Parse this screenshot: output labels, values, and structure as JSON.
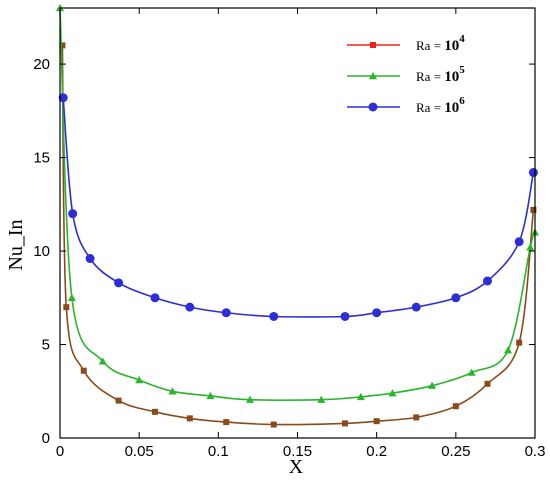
{
  "chart_data": {
    "type": "line",
    "title": "",
    "xlabel": "X",
    "ylabel": "Nu_In",
    "xlim": [
      0,
      0.3
    ],
    "ylim": [
      0,
      23
    ],
    "xticks": [
      0,
      0.05,
      0.1,
      0.15,
      0.2,
      0.25,
      0.3
    ],
    "xtick_labels": [
      "0",
      "0.05",
      "0.1",
      "0.15",
      "0.2",
      "0.25",
      "0.3"
    ],
    "yticks": [
      0,
      5,
      10,
      15,
      20
    ],
    "ytick_labels": [
      "0",
      "5",
      "10",
      "15",
      "20"
    ],
    "grid": false,
    "legend_position": "top-right",
    "series": [
      {
        "name": "Ra = 10^4",
        "legend_prefix": "Ra = ",
        "legend_base": "10",
        "legend_exp": "4",
        "color": "#e8231f",
        "curve_color": "#8b4a1a",
        "marker": "square",
        "x": [
          0.0015,
          0.004,
          0.015,
          0.037,
          0.06,
          0.082,
          0.105,
          0.135,
          0.18,
          0.2,
          0.225,
          0.25,
          0.27,
          0.29,
          0.299
        ],
        "y": [
          21,
          7.0,
          3.6,
          2.0,
          1.4,
          1.05,
          0.85,
          0.72,
          0.78,
          0.9,
          1.1,
          1.7,
          2.9,
          5.1,
          12.2
        ]
      },
      {
        "name": "Ra = 10^5",
        "legend_prefix": "Ra = ",
        "legend_base": "10",
        "legend_exp": "5",
        "color": "#2ab52a",
        "curve_color": "#2ab52a",
        "marker": "triangle",
        "x": [
          0.0,
          0.0075,
          0.027,
          0.05,
          0.071,
          0.095,
          0.12,
          0.165,
          0.19,
          0.21,
          0.235,
          0.26,
          0.283,
          0.297,
          0.3
        ],
        "y": [
          23,
          7.5,
          4.1,
          3.1,
          2.5,
          2.25,
          2.05,
          2.05,
          2.2,
          2.4,
          2.8,
          3.5,
          4.7,
          10.2,
          11
        ]
      },
      {
        "name": "Ra = 10^6",
        "legend_prefix": "Ra = ",
        "legend_base": "10",
        "legend_exp": "6",
        "color": "#2e2ed6",
        "curve_color": "#2e2ed6",
        "marker": "circle",
        "x": [
          0.002,
          0.008,
          0.019,
          0.037,
          0.06,
          0.082,
          0.105,
          0.135,
          0.18,
          0.2,
          0.225,
          0.25,
          0.27,
          0.29,
          0.299
        ],
        "y": [
          18.2,
          12.0,
          9.6,
          8.3,
          7.5,
          7.0,
          6.7,
          6.5,
          6.5,
          6.7,
          7.0,
          7.5,
          8.4,
          10.5,
          14.2
        ]
      }
    ]
  }
}
